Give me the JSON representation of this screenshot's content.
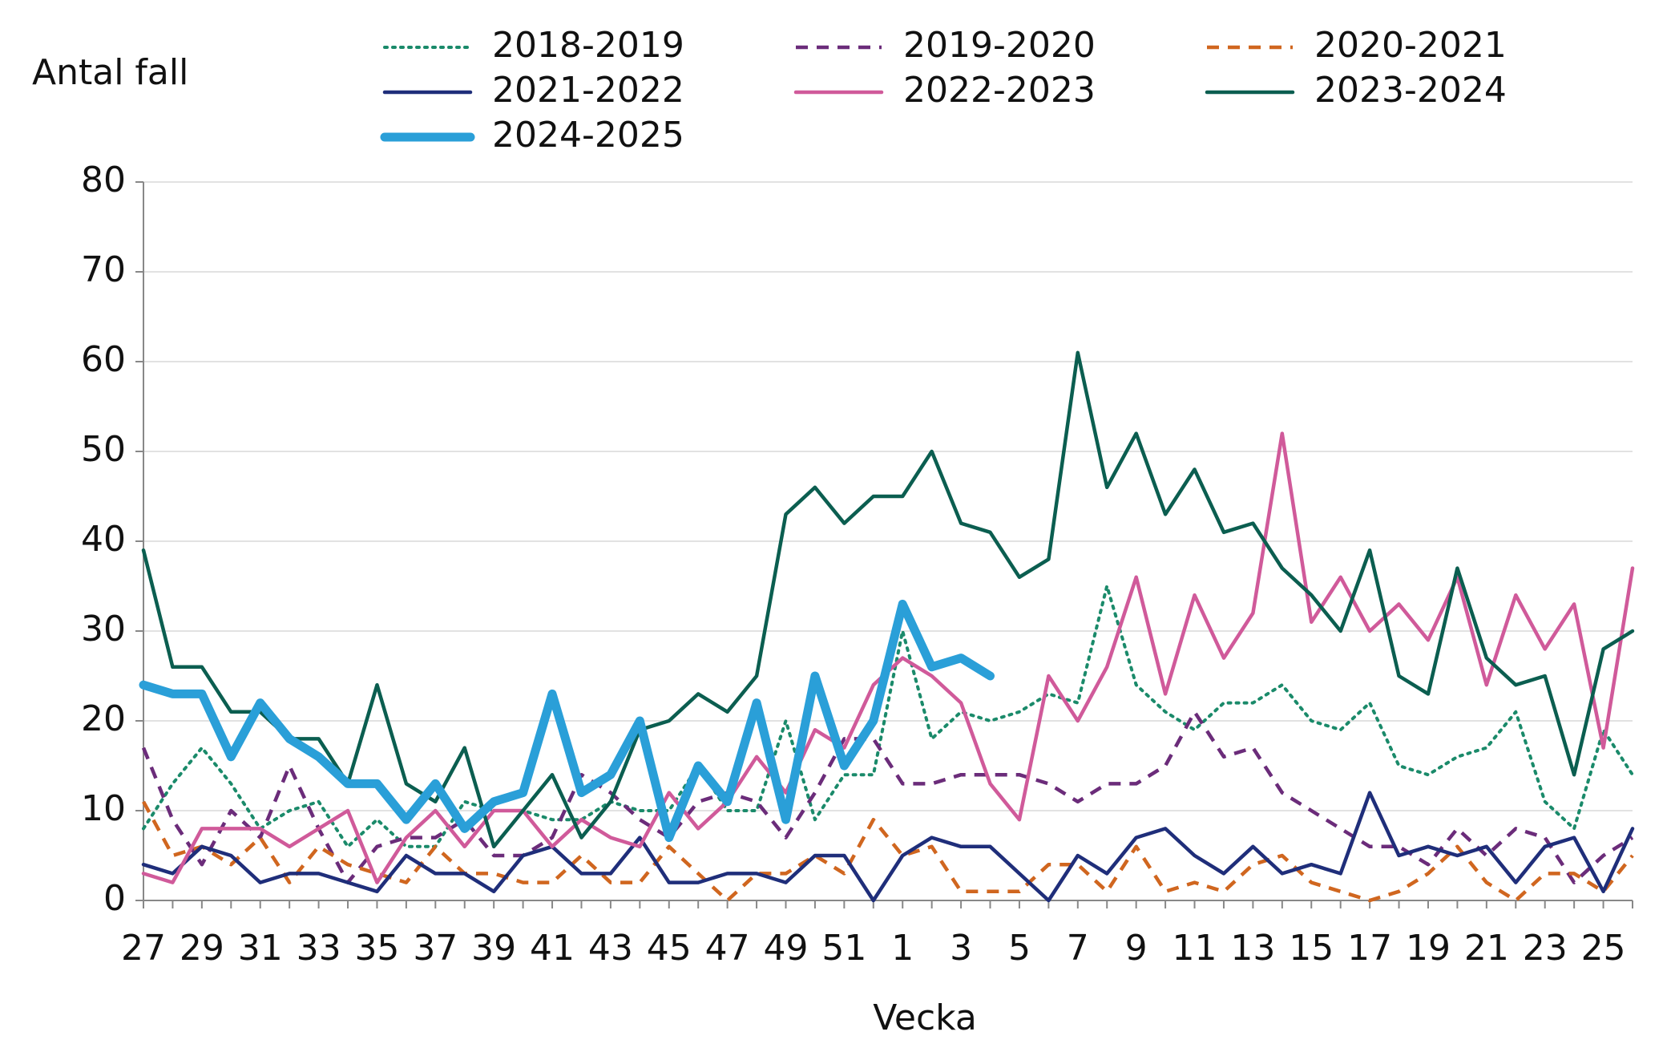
{
  "chart_data": {
    "type": "line",
    "y_label": "Antal fall",
    "x_label": "Vecka",
    "categories": [
      "27",
      null,
      "29",
      null,
      "31",
      null,
      "33",
      null,
      "35",
      null,
      "37",
      null,
      "39",
      null,
      "41",
      null,
      "43",
      null,
      "45",
      null,
      "47",
      null,
      "49",
      null,
      "51",
      null,
      "1",
      null,
      "3",
      null,
      "5",
      null,
      "7",
      null,
      "9",
      null,
      "11",
      null,
      "13",
      null,
      "15",
      null,
      "17",
      null,
      "19",
      null,
      "21",
      null,
      "23",
      null,
      "25",
      null
    ],
    "ylim": [
      0,
      80
    ],
    "yticks": [
      0,
      10,
      20,
      30,
      40,
      50,
      60,
      70,
      80
    ],
    "grid": true,
    "series": [
      {
        "name": "2018-2019",
        "color": "#1a8a6a",
        "style": "dotted",
        "values": [
          8,
          13,
          17,
          13,
          8,
          10,
          11,
          6,
          9,
          6,
          6,
          11,
          10,
          10,
          9,
          9,
          11,
          10,
          10,
          15,
          10,
          10,
          20,
          9,
          14,
          14,
          30,
          18,
          21,
          20,
          21,
          23,
          22,
          35,
          24,
          21,
          19,
          22,
          22,
          24,
          20,
          19,
          22,
          15,
          14,
          16,
          17,
          21,
          11,
          8,
          19,
          14
        ]
      },
      {
        "name": "2019-2020",
        "color": "#6b2c7a",
        "style": "dashed",
        "values": [
          17,
          9,
          4,
          10,
          7,
          15,
          8,
          2,
          6,
          7,
          7,
          9,
          5,
          5,
          7,
          14,
          12,
          9,
          7,
          11,
          12,
          11,
          7,
          12,
          18,
          18,
          13,
          13,
          14,
          14,
          14,
          13,
          11,
          13,
          13,
          15,
          21,
          16,
          17,
          12,
          10,
          8,
          6,
          6,
          4,
          8,
          5,
          8,
          7,
          2,
          5,
          7
        ]
      },
      {
        "name": "2020-2021",
        "color": "#d0661f",
        "style": "dashed",
        "values": [
          11,
          5,
          6,
          4,
          7,
          2,
          6,
          4,
          3,
          2,
          6,
          3,
          3,
          2,
          2,
          5,
          2,
          2,
          6,
          3,
          0,
          3,
          3,
          5,
          3,
          9,
          5,
          6,
          1,
          1,
          1,
          4,
          4,
          1,
          6,
          1,
          2,
          1,
          4,
          5,
          2,
          1,
          0,
          1,
          3,
          6,
          2,
          0,
          3,
          3,
          1,
          5
        ]
      },
      {
        "name": "2021-2022",
        "color": "#1f2e7a",
        "style": "solid",
        "values": [
          4,
          3,
          6,
          5,
          2,
          3,
          3,
          2,
          1,
          5,
          3,
          3,
          1,
          5,
          6,
          3,
          3,
          7,
          2,
          2,
          3,
          3,
          2,
          5,
          5,
          0,
          5,
          7,
          6,
          6,
          3,
          0,
          5,
          3,
          7,
          8,
          5,
          3,
          6,
          3,
          4,
          3,
          12,
          5,
          6,
          5,
          6,
          2,
          6,
          7,
          1,
          8
        ]
      },
      {
        "name": "2022-2023",
        "color": "#d05a9a",
        "style": "solid",
        "values": [
          3,
          2,
          8,
          8,
          8,
          6,
          8,
          10,
          2,
          7,
          10,
          6,
          10,
          10,
          6,
          9,
          7,
          6,
          12,
          8,
          11,
          16,
          12,
          19,
          17,
          24,
          27,
          25,
          22,
          13,
          9,
          25,
          20,
          26,
          36,
          23,
          34,
          27,
          32,
          52,
          31,
          36,
          30,
          33,
          29,
          36,
          24,
          34,
          28,
          33,
          17,
          37
        ]
      },
      {
        "name": "2023-2024",
        "color": "#0b5e50",
        "style": "solid",
        "values": [
          39,
          26,
          26,
          21,
          21,
          18,
          18,
          13,
          24,
          13,
          11,
          17,
          6,
          10,
          14,
          7,
          11,
          19,
          20,
          23,
          21,
          25,
          43,
          46,
          42,
          45,
          45,
          50,
          42,
          41,
          36,
          38,
          61,
          46,
          52,
          43,
          48,
          41,
          42,
          37,
          34,
          30,
          39,
          25,
          23,
          37,
          27,
          24,
          25,
          14,
          28,
          30
        ]
      },
      {
        "name": "2024-2025",
        "color": "#2a9fd8",
        "style": "bold",
        "values": [
          24,
          23,
          23,
          16,
          22,
          18,
          16,
          13,
          13,
          9,
          13,
          8,
          11,
          12,
          23,
          12,
          14,
          20,
          7,
          15,
          11,
          22,
          9,
          25,
          15,
          20,
          33,
          26,
          27,
          25,
          null,
          null,
          null,
          null,
          null,
          null,
          null,
          null,
          null,
          null,
          null,
          null,
          null,
          null,
          null,
          null,
          null,
          null,
          null,
          null,
          null,
          null
        ]
      }
    ]
  }
}
